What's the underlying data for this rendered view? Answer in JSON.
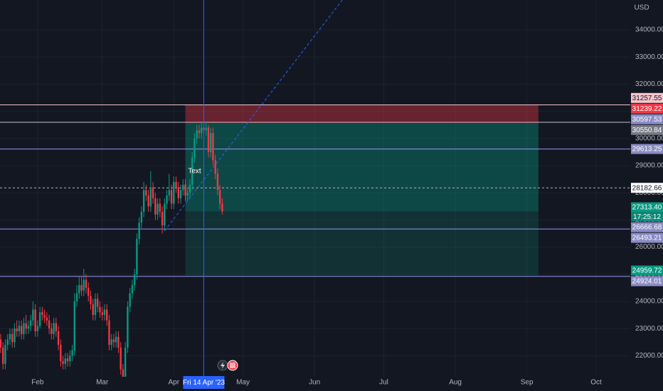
{
  "chart_data": {
    "type": "candlestick",
    "currency": "USD",
    "x": [
      15,
      16,
      17,
      18,
      19,
      20,
      21,
      22,
      23,
      24,
      25,
      26,
      27,
      28,
      29,
      30,
      31,
      32,
      33,
      34,
      35,
      36,
      37,
      38,
      39,
      40,
      41,
      42,
      43,
      44,
      45,
      46,
      47,
      48,
      49,
      50,
      51,
      52,
      53,
      54,
      55,
      56,
      57,
      58,
      59,
      60,
      61,
      62,
      63,
      64,
      65,
      66,
      67,
      68,
      69,
      70,
      71,
      72,
      73,
      74,
      75,
      76,
      77,
      78,
      79,
      80,
      81,
      82,
      83,
      84,
      85,
      86,
      87,
      88,
      89,
      90,
      91,
      92,
      93,
      94,
      95,
      96,
      97,
      98,
      99,
      100,
      101,
      102,
      103,
      104,
      105,
      106,
      107,
      108,
      109,
      110,
      111
    ],
    "open": [
      22600,
      22300,
      21700,
      22400,
      22600,
      22800,
      22500,
      23000,
      22900,
      23100,
      22800,
      23200,
      23000,
      23100,
      23300,
      23700,
      22900,
      23100,
      23600,
      23500,
      23400,
      23300,
      23000,
      22800,
      23200,
      22900,
      22400,
      21800,
      21700,
      21900,
      21800,
      22000,
      22200,
      24000,
      24300,
      24600,
      24400,
      24800,
      24500,
      24200,
      23900,
      23500,
      24100,
      23800,
      23600,
      23500,
      23700,
      23300,
      22400,
      22600,
      22500,
      22700,
      22300,
      21500,
      21000,
      22300,
      23800,
      24300,
      24600,
      25000,
      26300,
      26900,
      27300,
      28100,
      27900,
      27500,
      28200,
      27800,
      27200,
      27600,
      27300,
      26800,
      27600,
      27900,
      28100,
      27600,
      28400,
      28200,
      27800,
      28100,
      28300,
      27900,
      28000,
      28300,
      29300,
      30000,
      30300,
      30200,
      30400,
      30300,
      30400,
      29500,
      30200,
      29200,
      28700,
      28100,
      27600
    ],
    "high": [
      22800,
      22500,
      22600,
      22800,
      23000,
      23000,
      23200,
      23300,
      23300,
      23300,
      23400,
      23500,
      23300,
      23500,
      24000,
      23900,
      23300,
      23800,
      23800,
      23700,
      23600,
      23500,
      23200,
      23400,
      23400,
      23100,
      22600,
      22000,
      22100,
      22100,
      22200,
      22400,
      24300,
      24600,
      24900,
      24900,
      25200,
      25000,
      24700,
      24400,
      24100,
      24300,
      24300,
      24000,
      23800,
      23900,
      23900,
      23500,
      22800,
      22800,
      22900,
      22900,
      22500,
      21700,
      22500,
      24000,
      24500,
      24800,
      25200,
      26500,
      27100,
      27500,
      28400,
      28300,
      28100,
      28800,
      28400,
      28000,
      27800,
      27800,
      27500,
      27800,
      28100,
      28700,
      28300,
      28600,
      28600,
      28400,
      28300,
      28500,
      28500,
      28200,
      28500,
      29500,
      30200,
      30500,
      30500,
      30600,
      30600,
      30600,
      30500,
      30400,
      30400,
      29400,
      28900,
      28300,
      27800
    ],
    "low": [
      22100,
      21500,
      21500,
      22200,
      22400,
      22300,
      22300,
      22700,
      22700,
      22600,
      22600,
      22800,
      22800,
      22900,
      23100,
      22700,
      22700,
      23000,
      23300,
      23200,
      23100,
      22800,
      22600,
      22600,
      22700,
      22200,
      21600,
      21500,
      21500,
      21600,
      21600,
      21800,
      22000,
      23800,
      24100,
      24200,
      24200,
      24300,
      24000,
      23700,
      23300,
      23300,
      23600,
      23400,
      23300,
      23300,
      23100,
      22200,
      22200,
      22300,
      22300,
      22100,
      21300,
      20800,
      20800,
      22100,
      23600,
      24100,
      24400,
      24800,
      26100,
      26700,
      27100,
      27700,
      27300,
      27300,
      27600,
      27000,
      27000,
      27100,
      26500,
      26600,
      27400,
      27700,
      27400,
      27400,
      28000,
      27600,
      27600,
      27900,
      27700,
      27700,
      27800,
      28100,
      29100,
      29800,
      30000,
      30000,
      30100,
      30100,
      29300,
      29300,
      29000,
      28500,
      27900,
      27400,
      27200
    ],
    "close": [
      22300,
      21700,
      22400,
      22600,
      22800,
      22500,
      23000,
      22900,
      23100,
      22800,
      23200,
      23000,
      23100,
      23300,
      23700,
      22900,
      23100,
      23600,
      23500,
      23400,
      23300,
      23000,
      22800,
      23200,
      22900,
      22400,
      21800,
      21700,
      21900,
      21800,
      22000,
      22200,
      24000,
      24300,
      24600,
      24400,
      24800,
      24500,
      24200,
      23900,
      23500,
      24100,
      23800,
      23600,
      23500,
      23700,
      23300,
      22400,
      22600,
      22500,
      22700,
      22300,
      21500,
      21000,
      22300,
      23800,
      24300,
      24600,
      25000,
      26300,
      26900,
      27300,
      28100,
      27900,
      27500,
      28200,
      27800,
      27200,
      27600,
      27300,
      26800,
      27600,
      27900,
      28100,
      27600,
      28400,
      28200,
      27800,
      28100,
      28300,
      27900,
      28000,
      28300,
      29300,
      30000,
      30300,
      30200,
      30400,
      30300,
      30400,
      29500,
      30200,
      29200,
      28700,
      28100,
      27600,
      27313.4
    ],
    "up_color": "#089981",
    "down_color": "#f23645",
    "xlim": [
      14.7,
      287.8
    ],
    "xticks": [
      {
        "value": 31,
        "label": "Feb"
      },
      {
        "value": 59,
        "label": "Mar"
      },
      {
        "value": 90,
        "label": "Apr"
      },
      {
        "value": 120,
        "label": "May"
      },
      {
        "value": 151,
        "label": "Jun"
      },
      {
        "value": 181,
        "label": "Jul"
      },
      {
        "value": 212,
        "label": "Aug"
      },
      {
        "value": 243,
        "label": "Sep"
      },
      {
        "value": 273,
        "label": "Oct"
      }
    ],
    "ylim": [
      21225,
      35100
    ],
    "yticks": [
      {
        "value": 22000,
        "label": "22000.00"
      },
      {
        "value": 23000,
        "label": "23000.00"
      },
      {
        "value": 24000,
        "label": "24000.00"
      },
      {
        "value": 25000,
        "label": "25000.00"
      },
      {
        "value": 26000,
        "label": "26000.00"
      },
      {
        "value": 27000,
        "label": "27000.00"
      },
      {
        "value": 28000,
        "label": "28000.00"
      },
      {
        "value": 29000,
        "label": "29000.00"
      },
      {
        "value": 30000,
        "label": "30000.00"
      },
      {
        "value": 31000,
        "label": "31000.00"
      },
      {
        "value": 32000,
        "label": "32000.00"
      },
      {
        "value": 33000,
        "label": "33000.00"
      },
      {
        "value": 34000,
        "label": "34000.00"
      }
    ],
    "grid": true,
    "levels": [
      {
        "value": 31257.55,
        "color": "#f7c6cc"
      },
      {
        "value": 31239.22,
        "color": "#f23645",
        "line": "#f5c4ca"
      },
      {
        "value": 30597.53,
        "color": "#8a8cc4",
        "line": "#c3c6d0"
      },
      {
        "value": 30550.84,
        "color": "#787b86"
      },
      {
        "value": 29613.25,
        "color": "#8a8cc4",
        "line": "#9598f0"
      },
      {
        "value": 28182.66,
        "color": "#ffffff",
        "line": "#b2b5be",
        "dashed": true
      },
      {
        "value": 27313.4,
        "label": "27313.40",
        "color": "#089981",
        "countdown": "17:25:12"
      },
      {
        "value": 26666.68,
        "color": "#8a8cc4",
        "line": "#9598f0"
      },
      {
        "value": 26493.21,
        "color": "#8a8cc4"
      },
      {
        "value": 24959.72,
        "color": "#089981"
      },
      {
        "value": 24924.01,
        "color": "#8a8cc4",
        "line": "#9598f0"
      }
    ],
    "position": {
      "x": [
        95,
        248
      ],
      "entry": 30550.84,
      "stop": 31239.22,
      "target": 24959.72
    },
    "trendline": {
      "x": [
        86,
        163
      ],
      "y": [
        26600,
        35100
      ]
    },
    "annotation": {
      "text": "Text",
      "x": 99,
      "y": 28800
    },
    "crosshair": {
      "value": 103,
      "label": "Fri 14 Apr '23"
    }
  }
}
